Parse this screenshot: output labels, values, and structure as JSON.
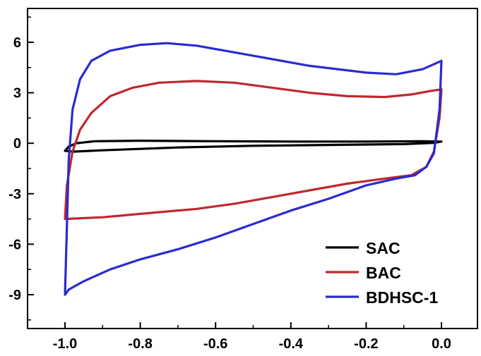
{
  "chart_data": {
    "type": "line",
    "title": "",
    "xlabel": "",
    "ylabel": "",
    "xlim": [
      -1.1,
      0.1
    ],
    "ylim": [
      -11,
      8
    ],
    "x_ticks": [
      -1.0,
      -0.8,
      -0.6,
      -0.4,
      -0.2,
      0.0
    ],
    "x_tick_labels": [
      "-1.0",
      "-0.8",
      "-0.6",
      "-0.4",
      "-0.2",
      "0.0"
    ],
    "y_ticks": [
      6,
      3,
      0,
      -3,
      -6,
      -9
    ],
    "y_tick_labels": [
      "6",
      "3",
      "0",
      "-3",
      "-6",
      "-9"
    ],
    "grid": false,
    "legend_position": "bottom-right",
    "series": [
      {
        "name": "SAC",
        "color": "#000000",
        "points": [
          [
            -1.0,
            -0.45
          ],
          [
            -0.99,
            -0.2
          ],
          [
            -0.97,
            0.0
          ],
          [
            -0.92,
            0.12
          ],
          [
            -0.8,
            0.15
          ],
          [
            -0.6,
            0.12
          ],
          [
            -0.4,
            0.1
          ],
          [
            -0.2,
            0.1
          ],
          [
            -0.05,
            0.12
          ],
          [
            0.0,
            0.1
          ],
          [
            -0.02,
            0.02
          ],
          [
            -0.1,
            -0.05
          ],
          [
            -0.3,
            -0.1
          ],
          [
            -0.5,
            -0.15
          ],
          [
            -0.7,
            -0.25
          ],
          [
            -0.9,
            -0.42
          ],
          [
            -0.98,
            -0.5
          ],
          [
            -1.0,
            -0.45
          ]
        ]
      },
      {
        "name": "BAC",
        "color": "#c0282d",
        "points": [
          [
            -1.0,
            -4.5
          ],
          [
            -0.995,
            -2.5
          ],
          [
            -0.98,
            -0.5
          ],
          [
            -0.96,
            0.8
          ],
          [
            -0.93,
            1.8
          ],
          [
            -0.88,
            2.8
          ],
          [
            -0.82,
            3.3
          ],
          [
            -0.75,
            3.6
          ],
          [
            -0.65,
            3.7
          ],
          [
            -0.55,
            3.6
          ],
          [
            -0.45,
            3.3
          ],
          [
            -0.35,
            3.0
          ],
          [
            -0.25,
            2.8
          ],
          [
            -0.15,
            2.75
          ],
          [
            -0.08,
            2.9
          ],
          [
            -0.03,
            3.1
          ],
          [
            0.0,
            3.2
          ],
          [
            -0.005,
            1.5
          ],
          [
            -0.02,
            -0.5
          ],
          [
            -0.04,
            -1.4
          ],
          [
            -0.08,
            -1.9
          ],
          [
            -0.15,
            -2.1
          ],
          [
            -0.25,
            -2.4
          ],
          [
            -0.35,
            -2.8
          ],
          [
            -0.45,
            -3.2
          ],
          [
            -0.55,
            -3.6
          ],
          [
            -0.65,
            -3.9
          ],
          [
            -0.8,
            -4.2
          ],
          [
            -0.9,
            -4.4
          ],
          [
            -1.0,
            -4.5
          ]
        ]
      },
      {
        "name": "BDHSC-1",
        "color": "#2a2ad0",
        "points": [
          [
            -1.0,
            -9.0
          ],
          [
            -0.995,
            -5.0
          ],
          [
            -0.99,
            -1.0
          ],
          [
            -0.98,
            2.0
          ],
          [
            -0.96,
            3.8
          ],
          [
            -0.93,
            4.9
          ],
          [
            -0.88,
            5.5
          ],
          [
            -0.8,
            5.85
          ],
          [
            -0.73,
            5.95
          ],
          [
            -0.65,
            5.8
          ],
          [
            -0.5,
            5.2
          ],
          [
            -0.35,
            4.6
          ],
          [
            -0.2,
            4.2
          ],
          [
            -0.12,
            4.1
          ],
          [
            -0.05,
            4.4
          ],
          [
            0.0,
            4.9
          ],
          [
            -0.005,
            2.0
          ],
          [
            -0.02,
            -0.6
          ],
          [
            -0.04,
            -1.4
          ],
          [
            -0.07,
            -1.9
          ],
          [
            -0.12,
            -2.1
          ],
          [
            -0.2,
            -2.5
          ],
          [
            -0.3,
            -3.3
          ],
          [
            -0.4,
            -4.0
          ],
          [
            -0.5,
            -4.8
          ],
          [
            -0.6,
            -5.6
          ],
          [
            -0.7,
            -6.3
          ],
          [
            -0.8,
            -6.9
          ],
          [
            -0.88,
            -7.5
          ],
          [
            -0.95,
            -8.2
          ],
          [
            -0.99,
            -8.7
          ],
          [
            -1.0,
            -9.0
          ]
        ]
      }
    ]
  }
}
